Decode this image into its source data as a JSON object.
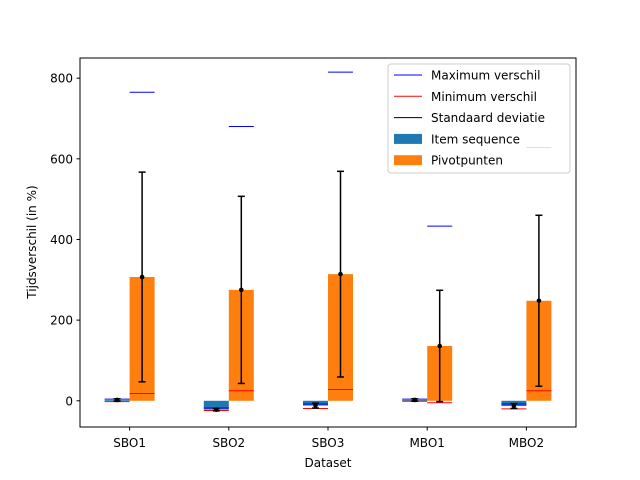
{
  "chart_data": {
    "type": "bar",
    "xlabel": "Dataset",
    "ylabel": "Tijdsverschil (in %)",
    "categories": [
      "SBO1",
      "SBO2",
      "SBO3",
      "MBO1",
      "MBO2"
    ],
    "ylim": [
      -65,
      850
    ],
    "yticks": [
      0,
      200,
      400,
      600,
      800
    ],
    "grid": false,
    "legend_position": "top-right",
    "series": [
      {
        "name": "Item sequence",
        "color": "#1f77b4",
        "values": [
          2,
          -22,
          -12,
          2,
          -13
        ],
        "std": [
          3,
          3,
          6,
          3,
          6
        ],
        "min": [
          -2,
          -24,
          -19,
          -1,
          -20
        ],
        "max": [
          4,
          -18,
          -8,
          4,
          -8
        ]
      },
      {
        "name": "Pivotpunten",
        "color": "#ff7f0e",
        "values": [
          307,
          275,
          314,
          136,
          248
        ],
        "std": [
          260,
          232,
          255,
          138,
          212
        ],
        "min": [
          18,
          25,
          28,
          -5,
          25
        ],
        "max": [
          765,
          680,
          815,
          433,
          628
        ]
      }
    ],
    "legend": [
      {
        "label": "Maximum verschil",
        "kind": "line",
        "color": "#0000ff"
      },
      {
        "label": "Minimum verschil",
        "kind": "line",
        "color": "#ff0000"
      },
      {
        "label": "Standaard deviatie",
        "kind": "line",
        "color": "#000000"
      },
      {
        "label": "Item sequence",
        "kind": "patch",
        "color": "#1f77b4"
      },
      {
        "label": "Pivotpunten",
        "kind": "patch",
        "color": "#ff7f0e"
      }
    ]
  }
}
